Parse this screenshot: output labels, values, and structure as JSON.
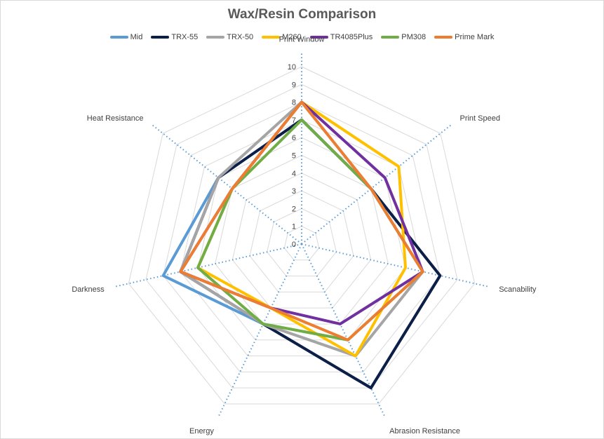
{
  "chart_data": {
    "type": "radar",
    "title": "Wax/Resin Comparison",
    "axes": [
      "Print Window",
      "Print Speed",
      "Scanability",
      "Abrasion Resistance",
      "Energy",
      "Darkness",
      "Heat Resistance"
    ],
    "rlim": [
      0,
      10
    ],
    "ticks": [
      "0",
      "1",
      "2",
      "3",
      "4",
      "5",
      "6",
      "7",
      "8",
      "9",
      "10"
    ],
    "legend_position": "top",
    "grid": true,
    "series": [
      {
        "name": "Mid",
        "color": "#5B9BD5",
        "values": [
          7,
          5,
          8,
          9,
          5,
          8,
          6
        ]
      },
      {
        "name": "TRX-55",
        "color": "#0D1F47",
        "values": [
          7,
          5,
          8,
          9,
          5,
          7,
          6
        ]
      },
      {
        "name": "TRX-50",
        "color": "#A5A5A5",
        "values": [
          8,
          5,
          7,
          7,
          5,
          7,
          6
        ]
      },
      {
        "name": "M260",
        "color": "#FFC000",
        "values": [
          8,
          7,
          6,
          7,
          4,
          6,
          5
        ]
      },
      {
        "name": "TR4085Plus",
        "color": "#7030A0",
        "values": [
          8,
          6,
          7,
          5,
          4,
          7,
          5
        ]
      },
      {
        "name": "PM308",
        "color": "#70AD47",
        "values": [
          7,
          5,
          7,
          6,
          5,
          6,
          5
        ]
      },
      {
        "name": "Prime Mark",
        "color": "#ED7D31",
        "values": [
          8,
          5,
          7,
          6,
          4,
          7,
          5
        ]
      }
    ]
  }
}
